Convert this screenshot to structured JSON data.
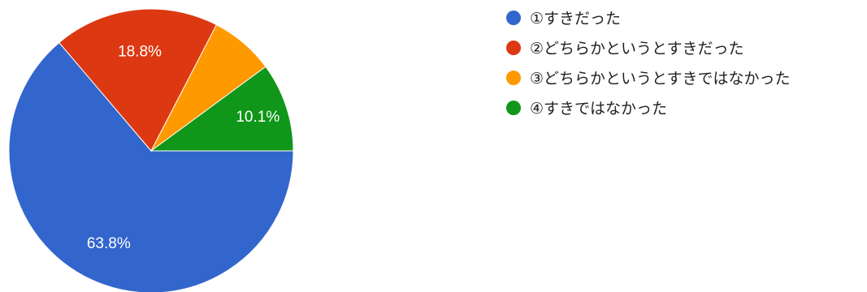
{
  "chart_data": {
    "type": "pie",
    "title": "",
    "categories": [
      "①すきだった",
      "②どちらかというとすきだった",
      "③どちらかというとすきではなかった",
      "④すきではなかった"
    ],
    "values": [
      63.8,
      18.8,
      7.3,
      10.1
    ],
    "value_labels": [
      "63.8%",
      "18.8%",
      "",
      "10.1%"
    ],
    "colors": [
      "#3366cc",
      "#dc3912",
      "#ff9900",
      "#109618"
    ],
    "legend_position": "right",
    "start_angle_deg": 90,
    "direction": "clockwise"
  }
}
